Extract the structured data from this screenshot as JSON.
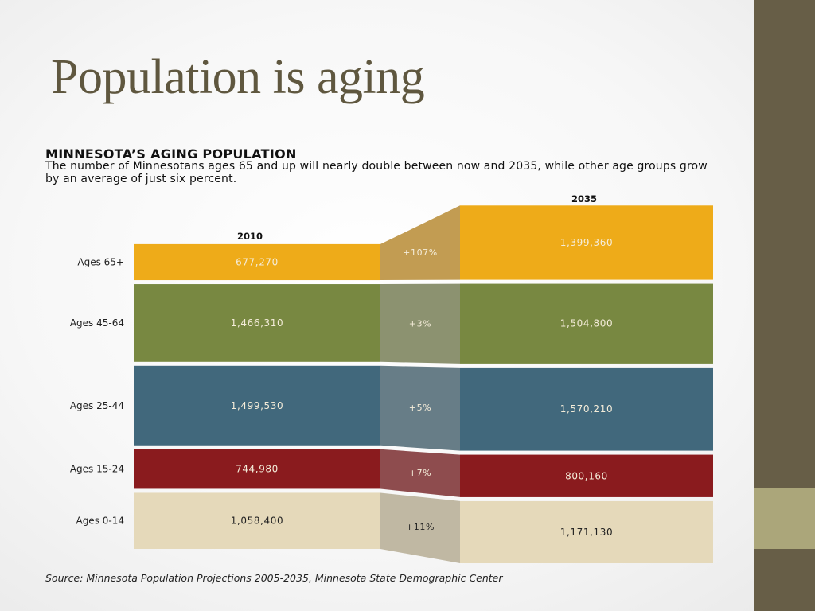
{
  "slide": {
    "title": "Population is aging"
  },
  "chart_data": {
    "type": "bar",
    "title": "MINNESOTA’S AGING POPULATION",
    "subtitle": "The number of Minnesotans ages 65 and up will nearly double between now and 2035, while other age groups grow by an average of just six percent.",
    "source": "Source: Minnesota Population Projections 2005-2035, Minnesota State Demographic Center",
    "x": [
      "2010",
      "2035"
    ],
    "series": [
      {
        "name": "Ages 65+",
        "values": [
          677270,
          1399360
        ],
        "labels": [
          "677,270",
          "1,399,360"
        ],
        "change": "+107%",
        "color": "#eeab19",
        "connector_color": "#c29c52"
      },
      {
        "name": "Ages 45-64",
        "values": [
          1466310,
          1504800
        ],
        "labels": [
          "1,466,310",
          "1,504,800"
        ],
        "change": "+3%",
        "color": "#788841",
        "connector_color": "#8c9270"
      },
      {
        "name": "Ages 25-44",
        "values": [
          1499530,
          1570210
        ],
        "labels": [
          "1,499,530",
          "1,570,210"
        ],
        "change": "+5%",
        "color": "#41687c",
        "connector_color": "#677d87"
      },
      {
        "name": "Ages 15-24",
        "values": [
          744980,
          800160
        ],
        "labels": [
          "744,980",
          "800,160"
        ],
        "change": "+7%",
        "color": "#8a1b1e",
        "connector_color": "#8e4c4e"
      },
      {
        "name": "Ages 0-14",
        "values": [
          1058400,
          1171130
        ],
        "labels": [
          "1,058,400",
          "1,171,130"
        ],
        "change": "+11%",
        "color": "#e5d9ba",
        "connector_color": "#c0b8a3"
      }
    ],
    "value_text_colors": {
      "dark_bg": "#f4ecd9",
      "light_bg": "#222222"
    },
    "legend": "none",
    "grid": false
  }
}
